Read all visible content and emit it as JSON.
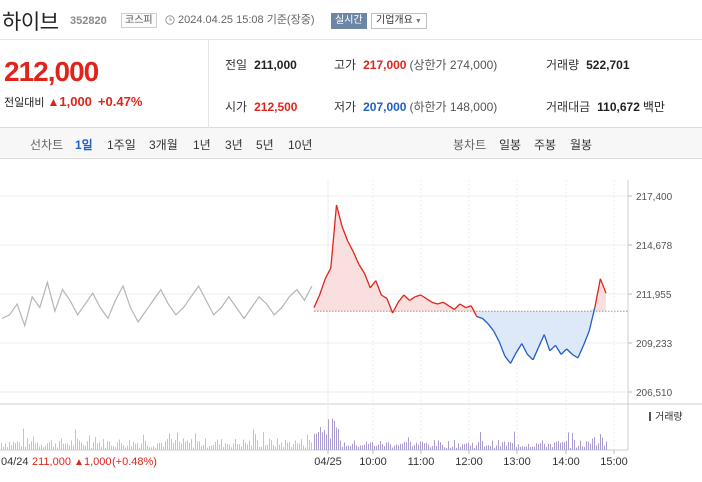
{
  "header": {
    "stock_name": "하이브",
    "stock_code": "352820",
    "market": "코스피",
    "datetime": "2024.04.25 15:08 기준(장중)",
    "realtime_button": "실시간",
    "company_overview_button": "기업개요"
  },
  "price": {
    "current": "212,000",
    "change_label": "전일대비",
    "change_symbol": "▲",
    "change": "1,000",
    "change_pct": "+0.47%",
    "color_up": "#e0241b",
    "color_down": "#1f5fc4"
  },
  "quote": {
    "prev_close_label": "전일",
    "prev_close": "211,000",
    "high_label": "고가",
    "high": "217,000",
    "upper_limit": "(상한가 274,000)",
    "volume_label": "거래량",
    "volume": "522,701",
    "open_label": "시가",
    "open": "212,500",
    "low_label": "저가",
    "low": "207,000",
    "lower_limit": "(하한가 148,000)",
    "amount_label": "거래대금",
    "amount": "110,672",
    "amount_unit": "백만"
  },
  "period_tabs": {
    "line_chart_label": "선차트",
    "items": [
      "1일",
      "1주일",
      "3개월",
      "1년",
      "3년",
      "5년",
      "10년"
    ],
    "selected": "1일",
    "candle_chart_label": "봉차트",
    "candle_items": [
      "일봉",
      "주봉",
      "월봉"
    ]
  },
  "chart_data": {
    "type": "line",
    "y_ticks": [
      "217,400",
      "214,678",
      "211,955",
      "209,233",
      "206,510"
    ],
    "ylim": [
      206510,
      217400
    ],
    "baseline": 211000,
    "volume_label": "거래량",
    "x_ticks": [
      "04/25",
      "10:00",
      "11:00",
      "12:00",
      "13:00",
      "14:00",
      "15:00"
    ],
    "prev_day_summary": {
      "date": "04/24",
      "price": "211,000",
      "symbol": "▲",
      "change": "1,000",
      "pct": "(+0.48%)"
    },
    "prev_day_series": [
      210600,
      210800,
      211400,
      210200,
      211800,
      211200,
      212600,
      211000,
      212200,
      211600,
      210800,
      211400,
      212000,
      211200,
      210600,
      211600,
      212400,
      211200,
      210400,
      211000,
      211600,
      212200,
      211400,
      210800,
      211200,
      211800,
      212400,
      211600,
      210800,
      211200,
      211800,
      211200,
      210600,
      211200,
      211800,
      211400,
      210800,
      211200,
      211800,
      212200,
      211600,
      212400
    ],
    "today_series": [
      211200,
      211900,
      212800,
      213400,
      216900,
      215700,
      214900,
      214300,
      213600,
      213100,
      212300,
      212700,
      211900,
      211700,
      210900,
      211500,
      211900,
      211600,
      211800,
      211900,
      211700,
      211500,
      211400,
      211500,
      211300,
      211100,
      211400,
      211200,
      211300,
      210700,
      210600,
      210300,
      209900,
      209300,
      208500,
      208100,
      208700,
      209200,
      208600,
      208300,
      209000,
      209700,
      208800,
      209100,
      208600,
      208900,
      208600,
      208400,
      209100,
      209900,
      211200,
      212800,
      212000
    ]
  }
}
